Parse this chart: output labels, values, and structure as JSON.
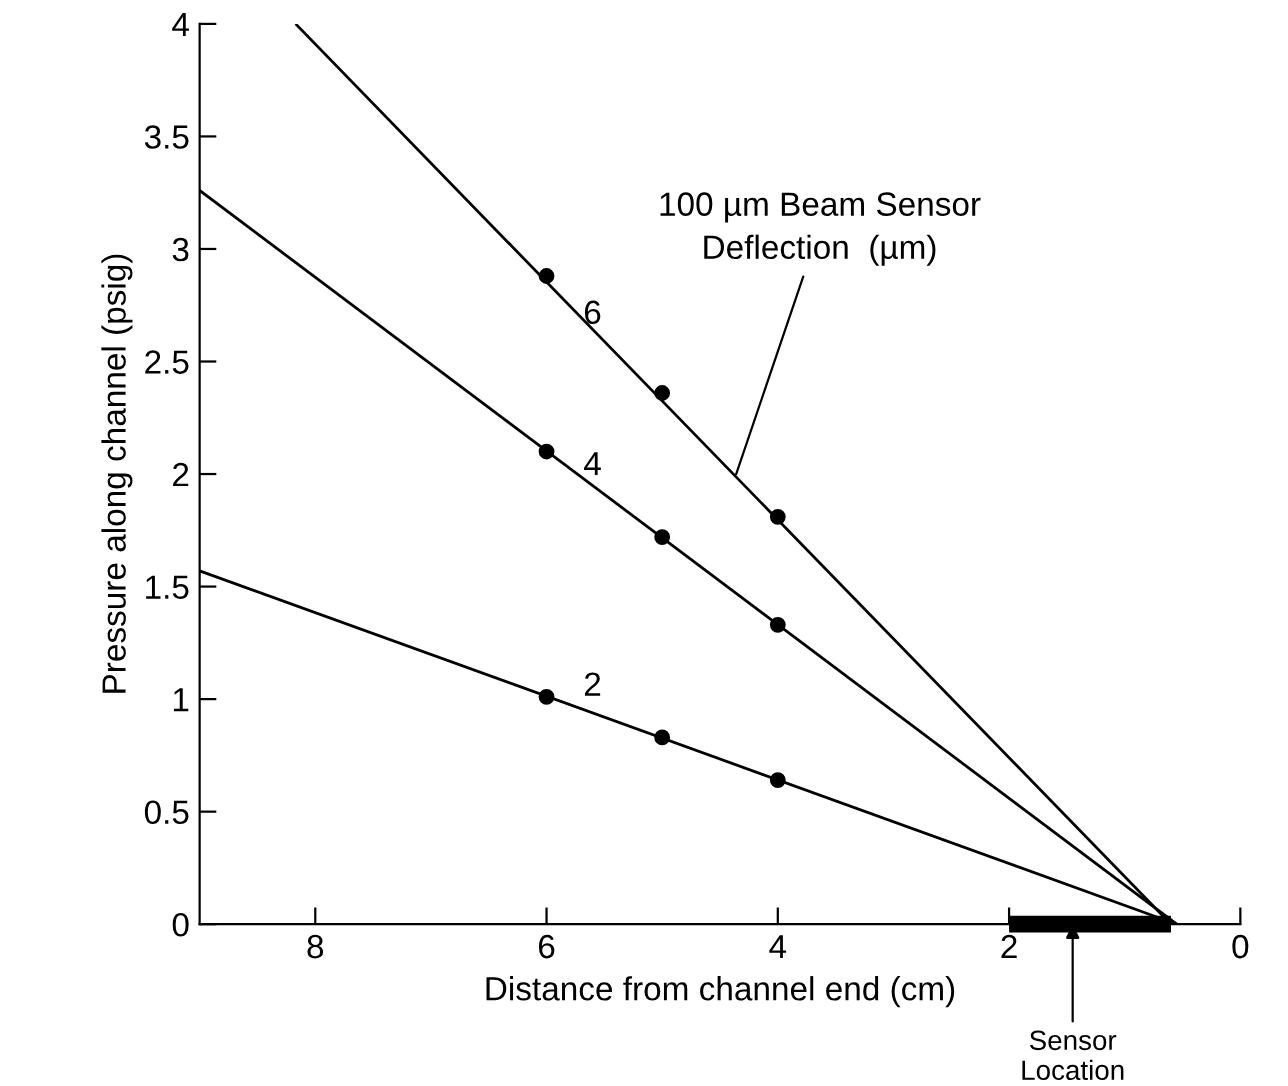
{
  "chart_data": {
    "type": "line",
    "xlabel": "Distance from channel end (cm)",
    "ylabel": "Pressure along channel (psig)",
    "xlim": [
      9,
      0
    ],
    "xticks": [
      8,
      6,
      4,
      2,
      0
    ],
    "ylim": [
      0,
      4
    ],
    "yticks": [
      0,
      {
        "value": 0.5,
        "label": "0.5"
      },
      1,
      {
        "value": 1.5,
        "label": "1.5"
      },
      2,
      {
        "value": 2.5,
        "label": "2.5"
      },
      3,
      {
        "value": 3.5,
        "label": "3.5"
      },
      4
    ],
    "grid": false,
    "legend": false,
    "line_style": "solid",
    "series": [
      {
        "name": "6",
        "color": "#000000",
        "marker": "none",
        "x": [
          8.17,
          0.6
        ],
        "values": [
          4,
          0
        ]
      },
      {
        "name": "4",
        "color": "#000000",
        "marker": "none",
        "x": [
          9,
          0.55
        ],
        "values": [
          3.26,
          0
        ]
      },
      {
        "name": "2",
        "color": "#000000",
        "marker": "none",
        "x": [
          9,
          0.55
        ],
        "values": [
          1.57,
          0
        ]
      },
      {
        "type": "scatter",
        "color": "#000000",
        "marker": "circle",
        "x": [
          6,
          5,
          4
        ],
        "values": [
          2.88,
          2.36,
          1.81
        ]
      },
      {
        "type": "scatter",
        "color": "#000000",
        "marker": "circle",
        "x": [
          6,
          5,
          4
        ],
        "values": [
          2.1,
          1.72,
          1.33
        ]
      },
      {
        "type": "scatter",
        "color": "#000000",
        "marker": "circle",
        "x": [
          6,
          5,
          4
        ],
        "values": [
          1.01,
          0.83,
          0.64
        ]
      },
      {
        "type": "line",
        "color": "#000000",
        "marker": "none",
        "x": [
          2,
          0.6
        ],
        "values": [
          0,
          0
        ]
      }
    ],
    "annotations": [
      {
        "text": "100 µm Beam Sensor\nDeflection  (µm)",
        "x": 4.36,
        "y": 2.0
      },
      {
        "text": "Sensor\nLocation",
        "x": 1.45,
        "y": 0
      }
    ]
  }
}
